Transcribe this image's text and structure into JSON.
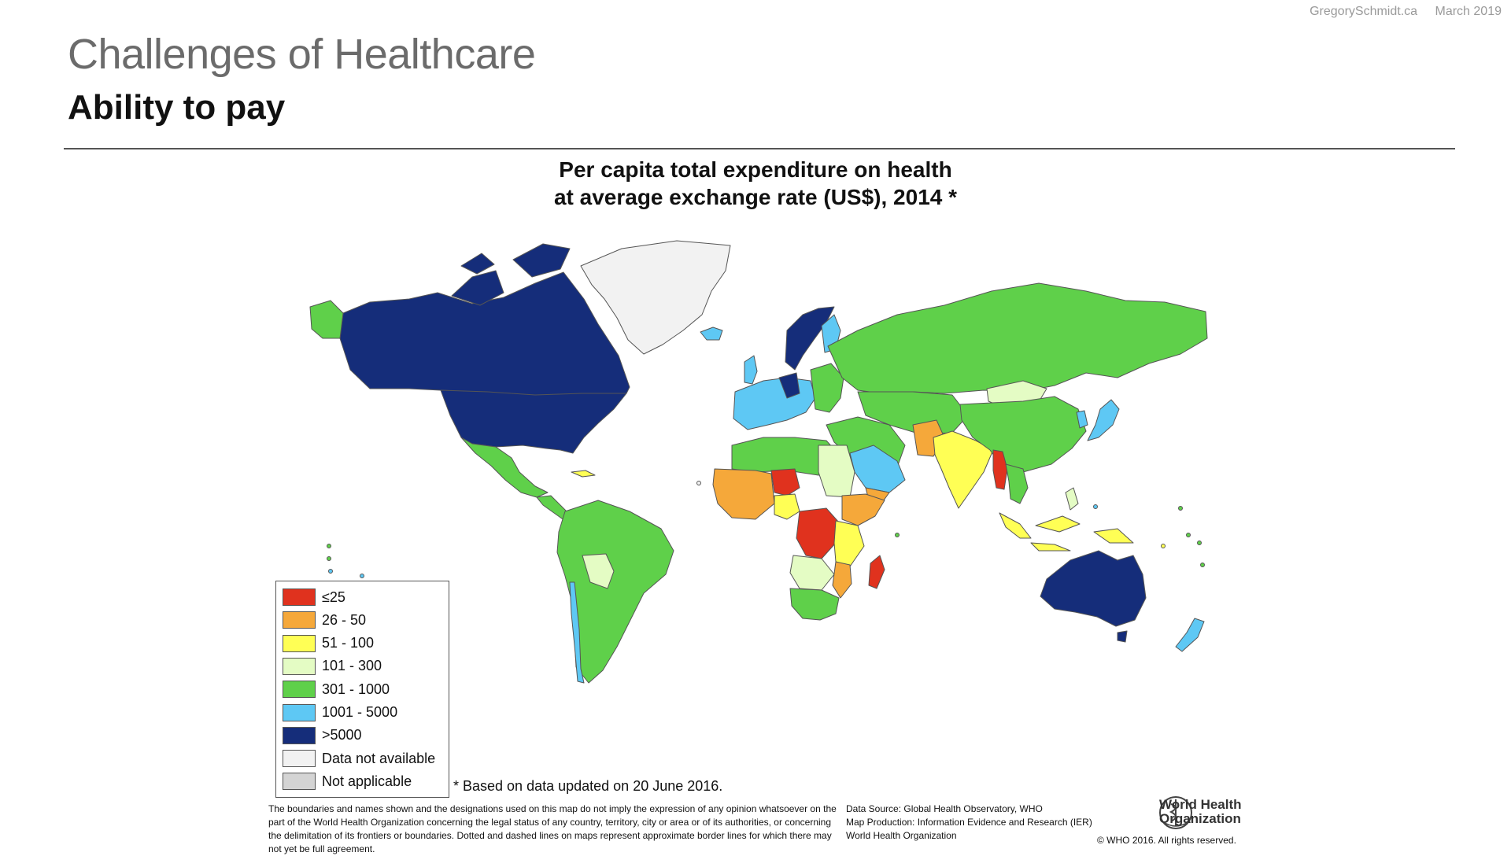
{
  "header": {
    "site": "GregorySchmidt.ca",
    "date": "March 2019",
    "title": "Challenges of Healthcare",
    "subtitle": "Ability to pay"
  },
  "map": {
    "title_line1": "Per capita total expenditure on health",
    "title_line2": "at average exchange rate (US$), 2014 *",
    "legend": [
      {
        "label": "≤25",
        "color": "#e0321e"
      },
      {
        "label": "26 - 50",
        "color": "#f5a83a"
      },
      {
        "label": "51 - 100",
        "color": "#ffff55"
      },
      {
        "label": "101 - 300",
        "color": "#e4fcc4"
      },
      {
        "label": "301 - 1000",
        "color": "#5fd04a"
      },
      {
        "label": "1001 - 5000",
        "color": "#5ec8f4"
      },
      {
        "label": ">5000",
        "color": "#152d7a"
      },
      {
        "label": "Data not available",
        "color": "#f2f2f2"
      },
      {
        "label": "Not applicable",
        "color": "#d4d4d4"
      }
    ],
    "footnote": "* Based on data updated on 20 June 2016.",
    "disclaimer": "The boundaries and names shown and the designations used on this map do not imply the expression of any opinion whatsoever on the part of the World Health Organization concerning the legal status of any country, territory, city or area or of its authorities, or concerning the delimitation of its frontiers or boundaries. Dotted and dashed lines on maps represent approximate border lines for which there may not yet be full agreement.",
    "source_lines": [
      "Data Source: Global Health Observatory, WHO",
      "Map Production: Information Evidence and Research (IER)",
      "World Health Organization"
    ],
    "who_name_line1": "World Health",
    "who_name_line2": "Organization",
    "copyright": "© WHO 2016. All rights reserved."
  }
}
